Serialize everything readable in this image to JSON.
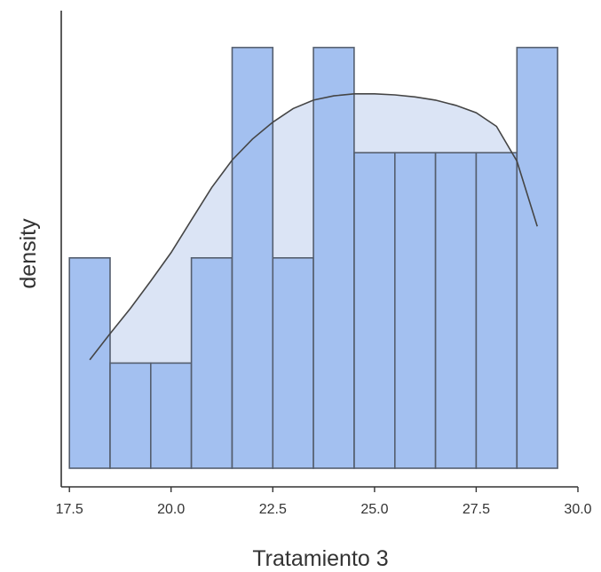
{
  "chart_data": {
    "type": "histogram",
    "xlabel": "Tratamiento 3",
    "ylabel": "density",
    "xlim": [
      17.3,
      30.0
    ],
    "ylim": [
      0,
      4.3
    ],
    "x_ticks": [
      17.5,
      20.0,
      22.5,
      25.0,
      27.5,
      30.0
    ],
    "x_tick_labels": [
      "17.5",
      "20.0",
      "22.5",
      "25.0",
      "27.5",
      "30.0"
    ],
    "y_ticks_shown": false,
    "grid": false,
    "bar_width": 1.0,
    "bins": [
      {
        "x0": 17.5,
        "x1": 18.5,
        "count": 2
      },
      {
        "x0": 18.5,
        "x1": 19.5,
        "count": 1
      },
      {
        "x0": 19.5,
        "x1": 20.5,
        "count": 1
      },
      {
        "x0": 20.5,
        "x1": 21.5,
        "count": 2
      },
      {
        "x0": 21.5,
        "x1": 22.5,
        "count": 4
      },
      {
        "x0": 22.5,
        "x1": 23.5,
        "count": 2
      },
      {
        "x0": 23.5,
        "x1": 24.5,
        "count": 4
      },
      {
        "x0": 24.5,
        "x1": 25.5,
        "count": 3
      },
      {
        "x0": 25.5,
        "x1": 26.5,
        "count": 3
      },
      {
        "x0": 26.5,
        "x1": 27.5,
        "count": 3
      },
      {
        "x0": 27.5,
        "x1": 28.5,
        "count": 3
      },
      {
        "x0": 28.5,
        "x1": 29.5,
        "count": 4
      }
    ],
    "density_curve": {
      "x": [
        18.0,
        18.5,
        19.0,
        19.5,
        20.0,
        20.5,
        21.0,
        21.5,
        22.0,
        22.5,
        23.0,
        23.5,
        24.0,
        24.5,
        25.0,
        25.5,
        26.0,
        26.5,
        27.0,
        27.5,
        28.0,
        28.5,
        29.0
      ],
      "y": [
        1.03,
        1.28,
        1.52,
        1.78,
        2.05,
        2.36,
        2.67,
        2.93,
        3.13,
        3.29,
        3.42,
        3.5,
        3.54,
        3.56,
        3.56,
        3.55,
        3.53,
        3.5,
        3.45,
        3.38,
        3.25,
        2.92,
        2.3
      ]
    },
    "colors": {
      "bar_fill": "#a3c0f0",
      "bar_stroke": "#545e6e",
      "density_fill": "#dbe4f5",
      "density_line": "#454545",
      "axis": "#333333"
    }
  }
}
